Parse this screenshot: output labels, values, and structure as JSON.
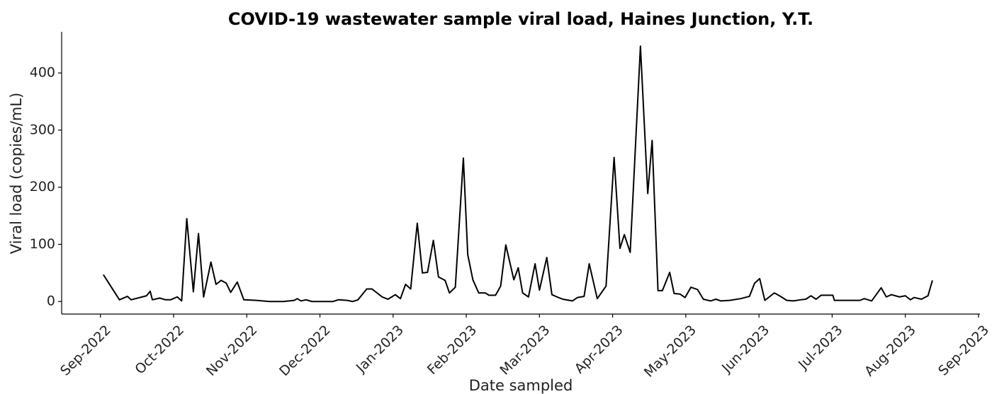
{
  "chart_data": {
    "type": "line",
    "title": "COVID-19 wastewater sample viral load, Haines Junction, Y.T.",
    "x_label": "Date sampled",
    "y_label": "Viral load (copies/mL)",
    "x": [
      0.04,
      0.15,
      0.26,
      0.37,
      0.42,
      0.63,
      0.68,
      0.71,
      0.81,
      0.89,
      0.96,
      1.05,
      1.11,
      1.18,
      1.27,
      1.34,
      1.41,
      1.51,
      1.58,
      1.65,
      1.72,
      1.78,
      1.87,
      1.96,
      2.13,
      2.31,
      2.5,
      2.65,
      2.69,
      2.74,
      2.81,
      2.89,
      3.18,
      3.25,
      3.37,
      3.45,
      3.52,
      3.64,
      3.71,
      3.78,
      3.85,
      3.93,
      4.03,
      4.1,
      4.17,
      4.24,
      4.33,
      4.4,
      4.47,
      4.55,
      4.62,
      4.71,
      4.77,
      4.85,
      4.96,
      5.02,
      5.09,
      5.17,
      5.26,
      5.31,
      5.4,
      5.47,
      5.54,
      5.65,
      5.71,
      5.77,
      5.85,
      5.94,
      6.0,
      6.1,
      6.17,
      6.24,
      6.32,
      6.45,
      6.52,
      6.61,
      6.68,
      6.79,
      6.91,
      7.02,
      7.1,
      7.16,
      7.24,
      7.38,
      7.48,
      7.54,
      7.62,
      7.68,
      7.78,
      7.84,
      7.92,
      7.99,
      8.07,
      8.16,
      8.24,
      8.34,
      8.41,
      8.48,
      8.6,
      8.75,
      8.87,
      8.94,
      9.01,
      9.08,
      9.21,
      9.28,
      9.38,
      9.47,
      9.57,
      9.64,
      9.71,
      9.78,
      9.85,
      10.01,
      10.03,
      10.24,
      10.38,
      10.44,
      10.54,
      10.67,
      10.74,
      10.81,
      10.92,
      11.0,
      11.07,
      11.12,
      11.22,
      11.31,
      11.37
    ],
    "series": [
      {
        "color": "#000000",
        "values": [
          47,
          25,
          3,
          9,
          3,
          10,
          18,
          3,
          6,
          3,
          3,
          8,
          1,
          145,
          17,
          119,
          8,
          69,
          30,
          37,
          32,
          16,
          34,
          3,
          2,
          0,
          0,
          2,
          5,
          1,
          3,
          0,
          0,
          3,
          2,
          0,
          3,
          22,
          22,
          15,
          8,
          4,
          12,
          5,
          30,
          22,
          137,
          50,
          51,
          107,
          43,
          37,
          15,
          25,
          251,
          82,
          38,
          15,
          15,
          11,
          11,
          27,
          99,
          38,
          59,
          15,
          8,
          66,
          20,
          77,
          12,
          8,
          4,
          1,
          7,
          9,
          66,
          5,
          27,
          252,
          93,
          117,
          86,
          447,
          189,
          282,
          19,
          19,
          51,
          14,
          13,
          7,
          25,
          21,
          4,
          1,
          4,
          1,
          2,
          5,
          9,
          32,
          40,
          2,
          15,
          10,
          2,
          1,
          3,
          4,
          10,
          4,
          11,
          11,
          2,
          2,
          2,
          5,
          1,
          24,
          8,
          12,
          8,
          10,
          3,
          7,
          4,
          10,
          37
        ]
      }
    ],
    "xlim": [
      -0.53,
      12.02
    ],
    "xticks": [
      {
        "value": 0,
        "label": "Sep-2022"
      },
      {
        "value": 1,
        "label": "Oct-2022"
      },
      {
        "value": 2,
        "label": "Nov-2022"
      },
      {
        "value": 3,
        "label": "Dec-2022"
      },
      {
        "value": 4,
        "label": "Jan-2023"
      },
      {
        "value": 5,
        "label": "Feb-2023"
      },
      {
        "value": 6,
        "label": "Mar-2023"
      },
      {
        "value": 7,
        "label": "Apr-2023"
      },
      {
        "value": 8,
        "label": "May-2023"
      },
      {
        "value": 9,
        "label": "Jun-2023"
      },
      {
        "value": 10,
        "label": "Jul-2023"
      },
      {
        "value": 11,
        "label": "Aug-2023"
      },
      {
        "value": 12,
        "label": "Sep-2023"
      }
    ],
    "ylim": [
      -22,
      472
    ],
    "yticks": [
      0,
      100,
      200,
      300,
      400
    ],
    "grid": false
  }
}
